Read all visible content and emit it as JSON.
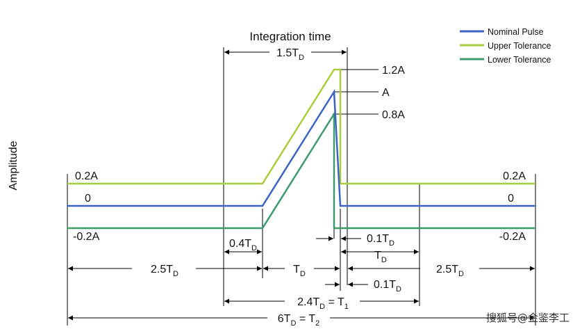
{
  "title": "Integration time",
  "y_axis_label": "Amplitude",
  "legend": {
    "nominal": "Nominal Pulse",
    "upper": "Upper Tolerance",
    "lower": "Lower Tolerance"
  },
  "colors": {
    "nominal": "#3a63c4",
    "upper": "#a8cc3a",
    "lower": "#3c9a6e",
    "dim_line": "#000000"
  },
  "levels": {
    "peak_upper": "1.2A",
    "peak_nominal": "A",
    "peak_lower": "0.8A",
    "left_upper": "0.2A",
    "left_zero": "0",
    "left_lower": "-0.2A",
    "right_upper": "0.2A",
    "right_zero": "0",
    "right_lower": "-0.2A"
  },
  "dimensions": {
    "integration_width": "1.5T",
    "rise_tolerance": "0.4T",
    "fall_tolerance_top": "0.1T",
    "td_right": "T",
    "left_baseline": "2.5T",
    "pulse_width": "T",
    "fall_tolerance_bottom": "0.1T",
    "right_baseline": "2.5T",
    "t1": "2.4T",
    "t1_eq": " = T",
    "t2": "6T",
    "t2_eq": " = T",
    "sub_d": "D",
    "sub_1": "1",
    "sub_2": "2"
  },
  "watermark": "搜狐号@金鉴李工"
}
